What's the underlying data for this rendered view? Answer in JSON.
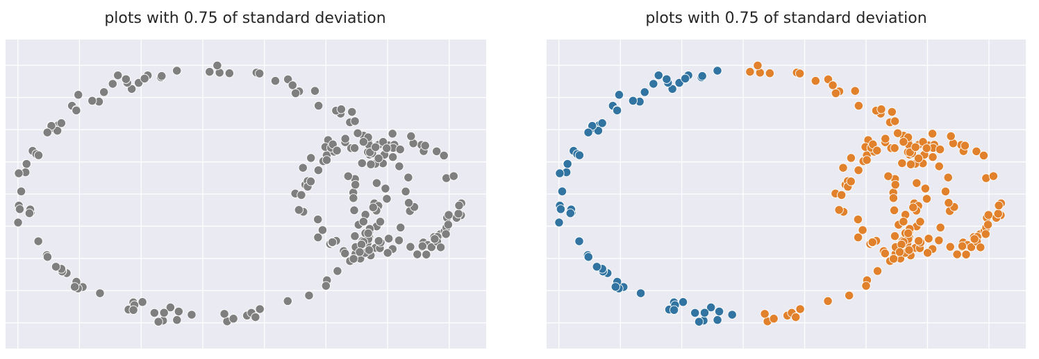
{
  "colors": {
    "background": "#eaeaf2",
    "grid": "#ffffff",
    "gray": "#7f7f7f",
    "blue": "#3274a1",
    "orange": "#e1812c",
    "marker_edge": "#ffffff"
  },
  "chart_data": [
    {
      "type": "scatter",
      "title": "plots with 0.75 of standard deviation",
      "xlabel": "",
      "ylabel": "",
      "xlim": [
        -1.6,
        2.3
      ],
      "ylim": [
        -1.2,
        1.2
      ],
      "grid": true,
      "color_mode": "single",
      "point_color": "#7f7f7f",
      "shapes": {
        "big_ellipse": {
          "cx": 0.0,
          "cy": 0.0,
          "rx": 1.45,
          "ry": 0.96,
          "count": 130,
          "noise": 0.035
        },
        "ring_a": {
          "cx": 1.25,
          "cy": -0.02,
          "r": 0.42,
          "count": 60,
          "noise": 0.035
        },
        "ring_b": {
          "cx": 1.64,
          "cy": -0.02,
          "r": 0.42,
          "count": 60,
          "noise": 0.035
        }
      }
    },
    {
      "type": "scatter",
      "title": "plots with 0.75 of standard deviation",
      "xlabel": "",
      "ylabel": "",
      "xlim": [
        -1.6,
        2.3
      ],
      "ylim": [
        -1.2,
        1.2
      ],
      "grid": true,
      "color_mode": "cluster",
      "cluster_split_x": 0.0,
      "cluster_colors": [
        "#3274a1",
        "#e1812c"
      ],
      "shapes": {
        "big_ellipse": {
          "cx": 0.0,
          "cy": 0.0,
          "rx": 1.45,
          "ry": 0.96,
          "count": 130,
          "noise": 0.035
        },
        "ring_a": {
          "cx": 1.25,
          "cy": -0.02,
          "r": 0.42,
          "count": 60,
          "noise": 0.035
        },
        "ring_b": {
          "cx": 1.64,
          "cy": -0.02,
          "r": 0.42,
          "count": 60,
          "noise": 0.035
        }
      }
    }
  ]
}
